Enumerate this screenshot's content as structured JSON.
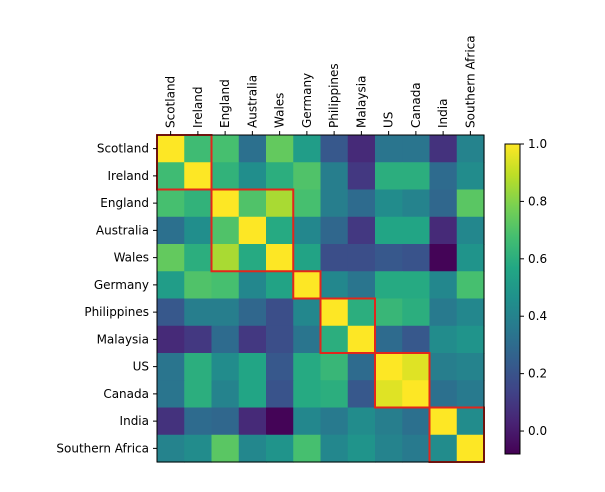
{
  "chart_data": {
    "type": "heatmap",
    "title": "",
    "xlabel": "",
    "ylabel": "",
    "x_tick_position": "top",
    "labels": [
      "Scotland",
      "Ireland",
      "England",
      "Australia",
      "Wales",
      "Germany",
      "Philippines",
      "Malaysia",
      "US",
      "Canada",
      "India",
      "Southern Africa"
    ],
    "matrix": [
      [
        1.0,
        0.66,
        0.68,
        0.32,
        0.74,
        0.52,
        0.22,
        0.05,
        0.34,
        0.34,
        0.08,
        0.4
      ],
      [
        0.66,
        1.0,
        0.62,
        0.45,
        0.6,
        0.7,
        0.38,
        0.1,
        0.6,
        0.6,
        0.3,
        0.44
      ],
      [
        0.68,
        0.62,
        1.0,
        0.7,
        0.86,
        0.68,
        0.38,
        0.3,
        0.44,
        0.4,
        0.28,
        0.72
      ],
      [
        0.32,
        0.45,
        0.7,
        1.0,
        0.58,
        0.42,
        0.28,
        0.1,
        0.56,
        0.56,
        0.05,
        0.42
      ],
      [
        0.74,
        0.6,
        0.86,
        0.58,
        1.0,
        0.55,
        0.18,
        0.18,
        0.22,
        0.2,
        -0.07,
        0.48
      ],
      [
        0.52,
        0.7,
        0.68,
        0.42,
        0.55,
        1.0,
        0.42,
        0.34,
        0.58,
        0.58,
        0.42,
        0.68
      ],
      [
        0.22,
        0.38,
        0.38,
        0.28,
        0.18,
        0.42,
        1.0,
        0.6,
        0.64,
        0.6,
        0.36,
        0.42
      ],
      [
        0.05,
        0.1,
        0.3,
        0.1,
        0.18,
        0.34,
        0.6,
        1.0,
        0.3,
        0.22,
        0.44,
        0.48
      ],
      [
        0.34,
        0.6,
        0.44,
        0.56,
        0.22,
        0.58,
        0.64,
        0.3,
        1.0,
        0.95,
        0.38,
        0.4
      ],
      [
        0.34,
        0.6,
        0.4,
        0.56,
        0.2,
        0.58,
        0.6,
        0.22,
        0.95,
        1.0,
        0.32,
        0.36
      ],
      [
        0.08,
        0.3,
        0.28,
        0.05,
        -0.07,
        0.42,
        0.36,
        0.44,
        0.38,
        0.32,
        1.0,
        0.44
      ],
      [
        0.4,
        0.44,
        0.72,
        0.42,
        0.48,
        0.68,
        0.42,
        0.48,
        0.4,
        0.36,
        0.44,
        1.0
      ]
    ],
    "clusters": [
      [
        0,
        1
      ],
      [
        2,
        4
      ],
      [
        5,
        5
      ],
      [
        6,
        7
      ],
      [
        8,
        9
      ],
      [
        10,
        11
      ]
    ],
    "cluster_outline_color": "#e1261c",
    "colormap": "viridis",
    "vmin": -0.08,
    "vmax": 1.0,
    "colorbar": {
      "ticks": [
        0.0,
        0.2,
        0.4,
        0.6,
        0.8,
        1.0
      ],
      "tick_labels": [
        "0.0",
        "0.2",
        "0.4",
        "0.6",
        "0.8",
        "1.0"
      ]
    }
  }
}
